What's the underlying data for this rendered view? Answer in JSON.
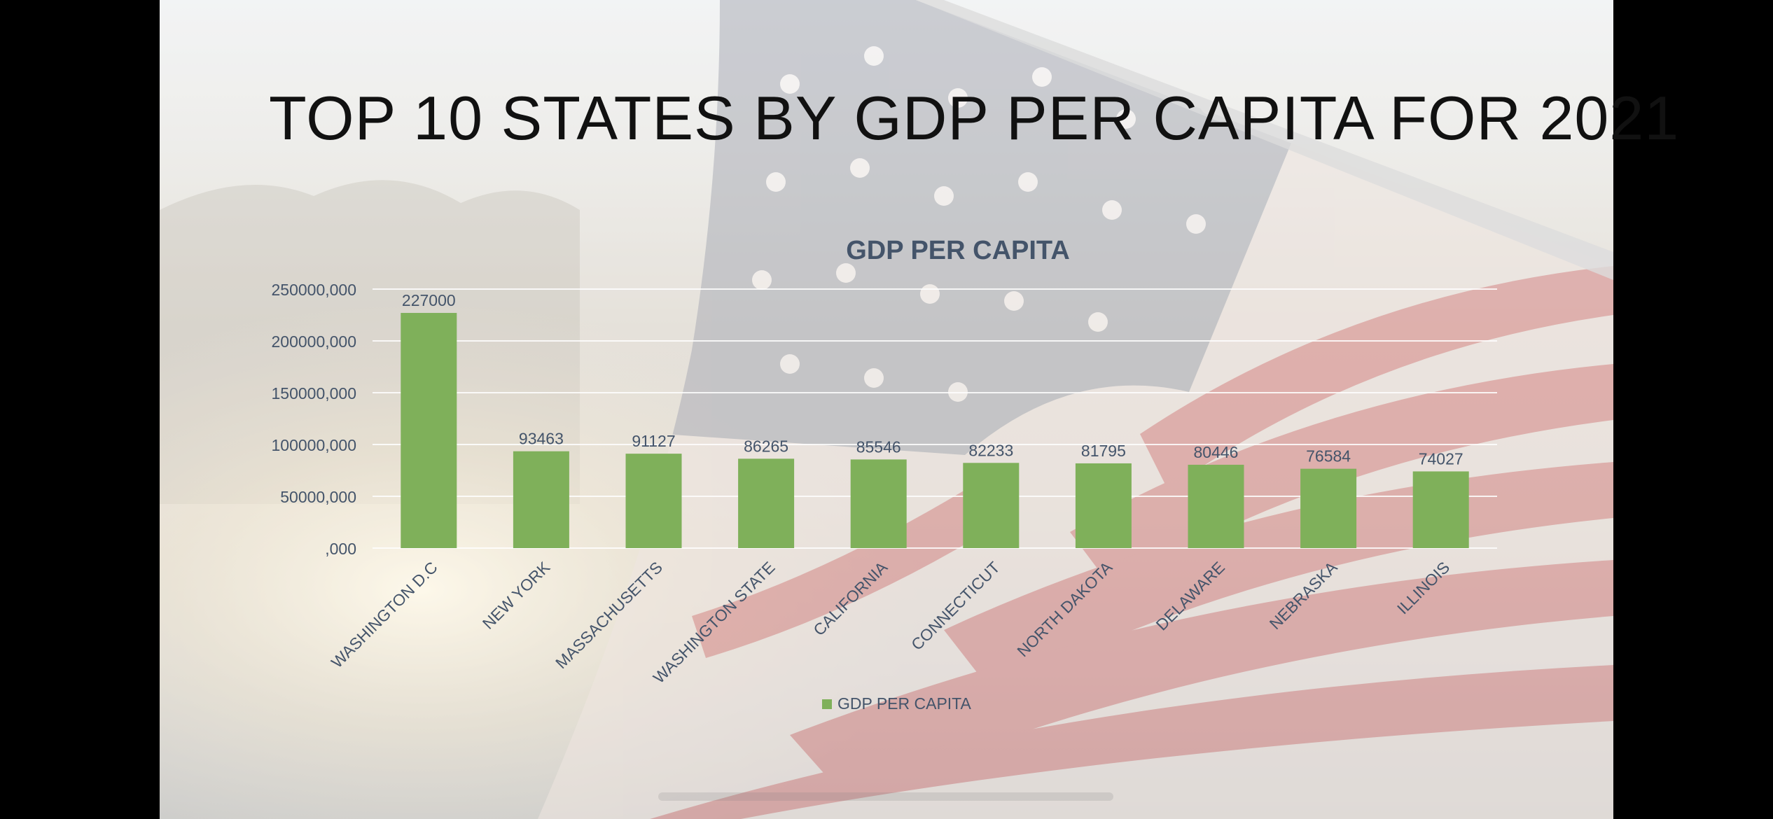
{
  "slide": {
    "title": "TOP 10 STATES BY GDP PER CAPITA FOR 2021"
  },
  "chart_data": {
    "type": "bar",
    "title": "GDP PER CAPITA",
    "xlabel": "",
    "ylabel": "",
    "categories": [
      "WASHINGTON D.C",
      "NEW YORK",
      "MASSACHUSETTS",
      "WASHINGTON STATE",
      "CALIFORNIA",
      "CONNECTICUT",
      "NORTH DAKOTA",
      "DELAWARE",
      "NEBRASKA",
      "ILLINOIS"
    ],
    "series": [
      {
        "name": "GDP PER CAPITA",
        "values": [
          227000,
          93463,
          91127,
          86265,
          85546,
          82233,
          81795,
          80446,
          76584,
          74027
        ],
        "color": "#7fb05a"
      }
    ],
    "data_labels": [
      "227000",
      "93463",
      "91127",
      "86265",
      "85546",
      "82233",
      "81795",
      "80446",
      "76584",
      "74027"
    ],
    "ylim": [
      0,
      250000
    ],
    "yticks": [
      0,
      50000,
      100000,
      150000,
      200000,
      250000
    ],
    "ytick_labels": [
      ",000",
      "50000,000",
      "100000,000",
      "150000,000",
      "200000,000",
      "250000,000"
    ],
    "grid": true,
    "legend_position": "bottom",
    "colors": {
      "bar": "#7fb05a",
      "text": "#44546a",
      "grid": "#ffffff"
    }
  }
}
